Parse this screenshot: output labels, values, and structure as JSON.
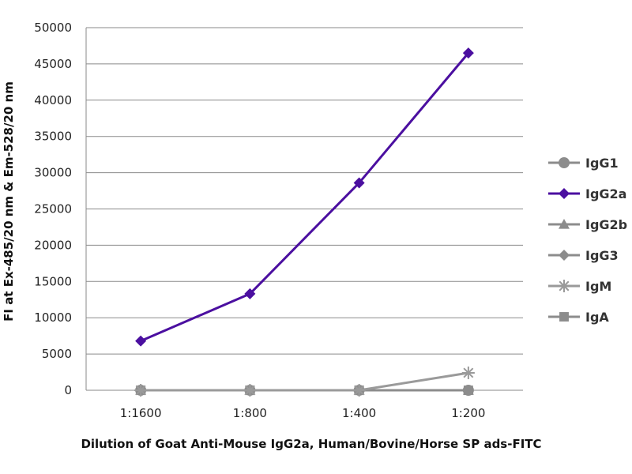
{
  "chart_data": {
    "type": "line",
    "categories": [
      "1:1600",
      "1:800",
      "1:400",
      "1:200"
    ],
    "xlabel": "Dilution of Goat Anti-Mouse IgG2a, Human/Bovine/Horse SP ads-FITC",
    "ylabel": "FI at Ex-485/20 nm & Em-528/20 nm",
    "ylim": [
      0,
      50000
    ],
    "yticks": [
      0,
      5000,
      10000,
      15000,
      20000,
      25000,
      30000,
      35000,
      40000,
      45000,
      50000
    ],
    "grid": true,
    "legend_position": "right",
    "series": [
      {
        "name": "IgG1",
        "values": [
          0,
          0,
          0,
          0
        ],
        "color": "#8c8c8c",
        "marker": "circle"
      },
      {
        "name": "IgG2a",
        "values": [
          6800,
          13300,
          28600,
          46500
        ],
        "color": "#4b0fa0",
        "marker": "diamond"
      },
      {
        "name": "IgG2b",
        "values": [
          0,
          0,
          0,
          0
        ],
        "color": "#8c8c8c",
        "marker": "triangle"
      },
      {
        "name": "IgG3",
        "values": [
          0,
          0,
          0,
          0
        ],
        "color": "#8c8c8c",
        "marker": "diamond"
      },
      {
        "name": "IgM",
        "values": [
          0,
          0,
          0,
          2400
        ],
        "color": "#9a9a9a",
        "marker": "star"
      },
      {
        "name": "IgA",
        "values": [
          0,
          0,
          0,
          0
        ],
        "color": "#8c8c8c",
        "marker": "square"
      }
    ]
  }
}
